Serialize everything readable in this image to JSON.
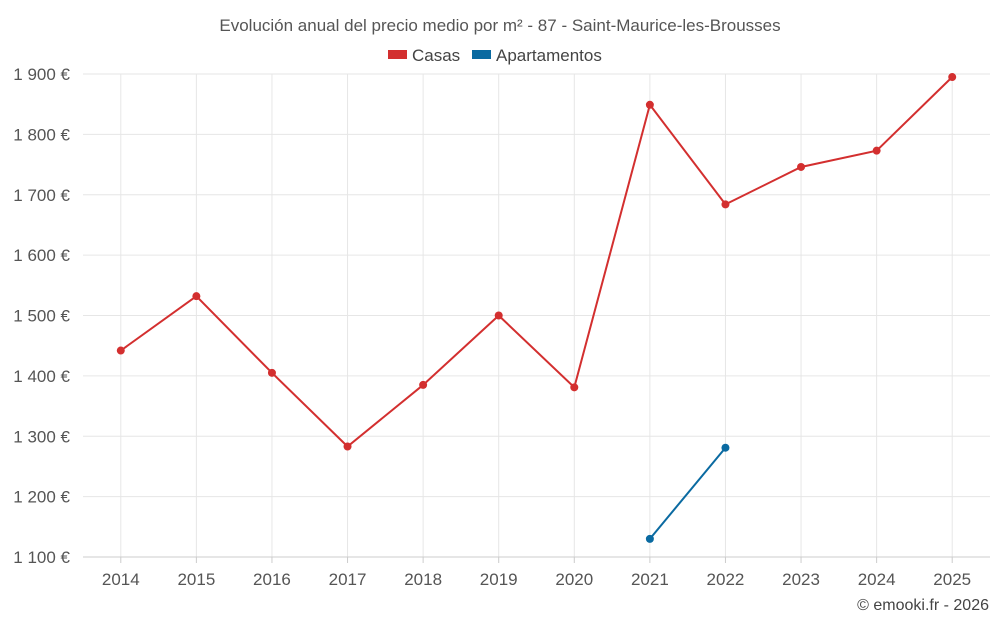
{
  "chart_data": {
    "type": "line",
    "title": "Evolución anual del precio medio por m² - 87 - Saint-Maurice-les-Brousses",
    "x": [
      "2014",
      "2015",
      "2016",
      "2017",
      "2018",
      "2019",
      "2020",
      "2021",
      "2022",
      "2023",
      "2024",
      "2025"
    ],
    "y_ticks": [
      1100,
      1200,
      1300,
      1400,
      1500,
      1600,
      1700,
      1800,
      1900
    ],
    "y_tick_labels": [
      "1 100 €",
      "1 200 €",
      "1 300 €",
      "1 400 €",
      "1 500 €",
      "1 600 €",
      "1 700 €",
      "1 800 €",
      "1 900 €"
    ],
    "ylim": [
      1100,
      1900
    ],
    "grid": true,
    "legend_position": "top-center",
    "series": [
      {
        "name": "Casas",
        "color": "#d32f2f",
        "values": [
          1442,
          1532,
          1405,
          1283,
          1385,
          1500,
          1381,
          1849,
          1684,
          1746,
          1773,
          1895
        ]
      },
      {
        "name": "Apartamentos",
        "color": "#0a6aa1",
        "values": [
          null,
          null,
          null,
          null,
          null,
          null,
          null,
          1130,
          1281,
          null,
          null,
          null
        ]
      }
    ],
    "credit": "© emooki.fr - 2026"
  }
}
